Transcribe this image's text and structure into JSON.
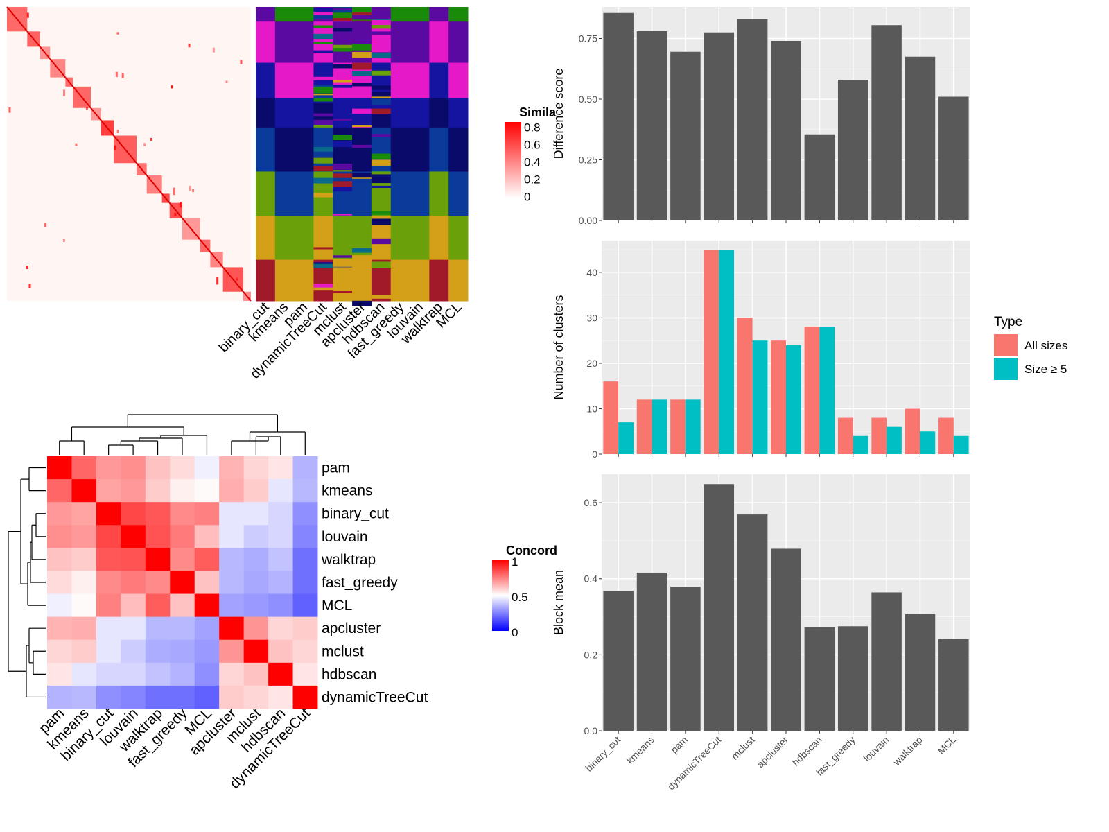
{
  "colors": {
    "panel_bg": "#EBEBEB",
    "bar": "#595959",
    "all_sizes": "#F8766D",
    "size_ge5": "#00BFC4",
    "similarity_high": "#FF0000",
    "concordance_low": "#0000FF",
    "concordance_high": "#FF0000"
  },
  "similarity": {
    "legend_title": "Simila",
    "legend_ticks": [
      "0.8",
      "0.6",
      "0.4",
      "0.2",
      "0"
    ],
    "block_sizes": [
      8,
      5,
      4,
      6,
      3,
      7,
      4,
      5,
      9,
      4,
      6,
      3,
      5,
      7,
      4,
      5,
      8,
      3
    ],
    "column_labels": [
      "binary_cut",
      "kmeans",
      "pam",
      "dynamicTreeCut",
      "mclust",
      "apcluster",
      "hdbscan",
      "fast_greedy",
      "louvain",
      "walktrap",
      "MCL"
    ]
  },
  "concordance": {
    "legend_title": "Concord",
    "legend_ticks": [
      "1",
      "0.5",
      "0"
    ],
    "methods": [
      "pam",
      "kmeans",
      "binary_cut",
      "louvain",
      "walktrap",
      "fast_greedy",
      "MCL",
      "apcluster",
      "mclust",
      "hdbscan",
      "dynamicTreeCut"
    ],
    "matrix": [
      [
        1.0,
        0.8,
        0.7,
        0.72,
        0.62,
        0.57,
        0.47,
        0.65,
        0.58,
        0.55,
        0.35
      ],
      [
        0.8,
        1.0,
        0.68,
        0.7,
        0.6,
        0.53,
        0.51,
        0.66,
        0.6,
        0.45,
        0.36
      ],
      [
        0.7,
        0.68,
        1.0,
        0.86,
        0.83,
        0.73,
        0.75,
        0.45,
        0.45,
        0.42,
        0.28
      ],
      [
        0.72,
        0.7,
        0.86,
        1.0,
        0.84,
        0.76,
        0.63,
        0.45,
        0.4,
        0.42,
        0.26
      ],
      [
        0.62,
        0.6,
        0.83,
        0.84,
        1.0,
        0.73,
        0.82,
        0.36,
        0.34,
        0.38,
        0.22
      ],
      [
        0.57,
        0.53,
        0.73,
        0.76,
        0.73,
        1.0,
        0.62,
        0.36,
        0.33,
        0.35,
        0.22
      ],
      [
        0.47,
        0.51,
        0.75,
        0.63,
        0.82,
        0.62,
        1.0,
        0.32,
        0.3,
        0.28,
        0.19
      ],
      [
        0.65,
        0.66,
        0.45,
        0.45,
        0.36,
        0.36,
        0.32,
        1.0,
        0.71,
        0.58,
        0.6
      ],
      [
        0.58,
        0.6,
        0.45,
        0.4,
        0.34,
        0.33,
        0.3,
        0.71,
        1.0,
        0.62,
        0.58
      ],
      [
        0.55,
        0.45,
        0.42,
        0.42,
        0.38,
        0.35,
        0.28,
        0.58,
        0.62,
        1.0,
        0.55
      ],
      [
        0.35,
        0.36,
        0.28,
        0.26,
        0.22,
        0.22,
        0.19,
        0.6,
        0.58,
        0.55,
        1.0
      ]
    ]
  },
  "chart_data": [
    {
      "type": "bar",
      "categories": [
        "binary_cut",
        "kmeans",
        "pam",
        "dynamicTreeCut",
        "mclust",
        "apcluster",
        "hdbscan",
        "fast_greedy",
        "louvain",
        "walktrap",
        "MCL"
      ],
      "values": [
        0.855,
        0.78,
        0.695,
        0.775,
        0.83,
        0.74,
        0.355,
        0.58,
        0.805,
        0.675,
        0.51
      ],
      "xlabel": "",
      "ylabel": "Difference score",
      "ylim": [
        0,
        0.88
      ],
      "yticks": [
        "0.00",
        "0.25",
        "0.50",
        "0.75"
      ],
      "grid": true
    },
    {
      "type": "bar",
      "categories": [
        "binary_cut",
        "kmeans",
        "pam",
        "dynamicTreeCut",
        "mclust",
        "apcluster",
        "hdbscan",
        "fast_greedy",
        "louvain",
        "walktrap",
        "MCL"
      ],
      "series": [
        {
          "name": "All sizes",
          "values": [
            16,
            12,
            12,
            45,
            30,
            25,
            28,
            8,
            8,
            10,
            8
          ]
        },
        {
          "name": "Size ≥ 5",
          "values": [
            7,
            12,
            12,
            45,
            25,
            24,
            28,
            4,
            6,
            5,
            4
          ]
        }
      ],
      "xlabel": "",
      "ylabel": "Number of clusters",
      "ylim": [
        0,
        47
      ],
      "yticks": [
        "0",
        "10",
        "20",
        "30",
        "40"
      ],
      "legend_title": "Type",
      "legend_position": "right",
      "grid": true
    },
    {
      "type": "bar",
      "categories": [
        "binary_cut",
        "kmeans",
        "pam",
        "dynamicTreeCut",
        "mclust",
        "apcluster",
        "hdbscan",
        "fast_greedy",
        "louvain",
        "walktrap",
        "MCL"
      ],
      "values": [
        0.368,
        0.416,
        0.379,
        0.649,
        0.569,
        0.479,
        0.273,
        0.275,
        0.364,
        0.307,
        0.241
      ],
      "xlabel": "",
      "ylabel": "Block mean",
      "ylim": [
        0,
        0.675
      ],
      "yticks": [
        "0.0",
        "0.2",
        "0.4",
        "0.6"
      ],
      "grid": true
    }
  ]
}
